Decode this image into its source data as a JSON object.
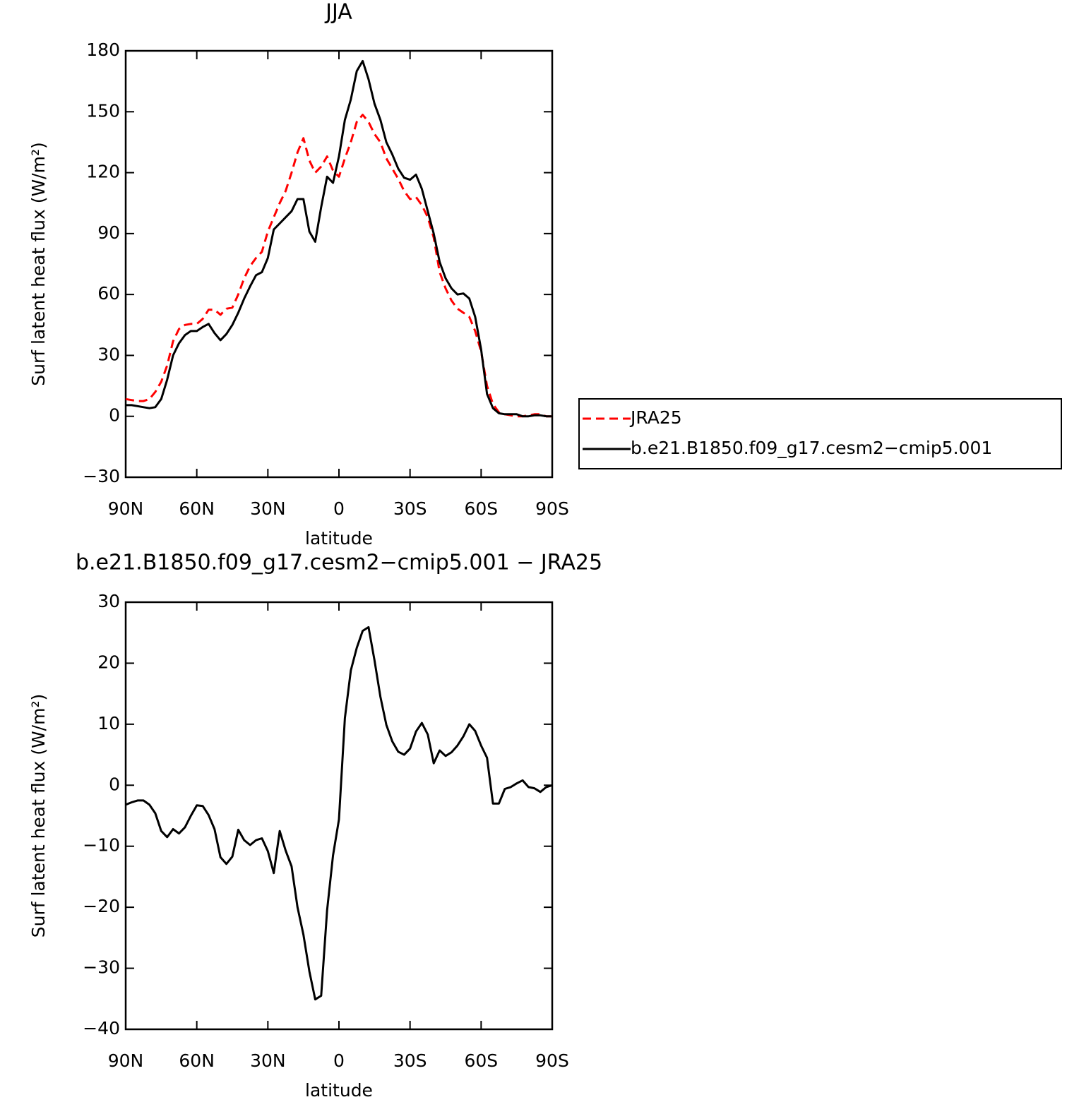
{
  "chart_data": [
    {
      "type": "line",
      "title": "JJA",
      "xlabel": "latitude",
      "ylabel": "Surf latent heat flux (W/m²)",
      "x": [
        90,
        87.5,
        85,
        82.5,
        80,
        77.5,
        75,
        72.5,
        70,
        67.5,
        65,
        62.5,
        60,
        57.5,
        55,
        52.5,
        50,
        47.5,
        45,
        42.5,
        40,
        37.5,
        35,
        32.5,
        30,
        27.5,
        25,
        22.5,
        20,
        17.5,
        15,
        12.5,
        10,
        7.5,
        5,
        2.5,
        0,
        -2.5,
        -5,
        -7.5,
        -10,
        -12.5,
        -15,
        -17.5,
        -20,
        -22.5,
        -25,
        -27.5,
        -30,
        -32.5,
        -35,
        -37.5,
        -40,
        -42.5,
        -45,
        -47.5,
        -50,
        -52.5,
        -55,
        -57.5,
        -60,
        -62.5,
        -65,
        -67.5,
        -70,
        -72.5,
        -75,
        -77.5,
        -80,
        -82.5,
        -85,
        -87.5,
        -90
      ],
      "series": [
        {
          "name": "JRA25",
          "color": "#ff0000",
          "style": "dashed",
          "values": [
            8.5,
            8,
            7.5,
            7.5,
            8.5,
            12,
            17,
            25,
            37,
            43,
            45,
            45.5,
            45.5,
            48,
            52.5,
            52.5,
            50,
            53,
            53.5,
            60,
            68,
            74,
            78,
            81,
            91,
            98,
            105,
            111,
            120,
            130,
            137,
            126,
            120,
            123,
            128,
            121,
            118,
            127,
            135,
            145,
            148.5,
            145,
            139,
            135,
            127,
            122,
            117,
            111,
            107,
            108,
            104,
            98,
            88,
            71,
            63,
            57,
            53,
            51,
            49,
            42,
            32,
            15,
            6,
            2,
            1,
            0.5,
            0,
            0,
            0.5,
            1,
            1,
            0,
            0
          ]
        },
        {
          "name": "b.e21.B1850.f09_g17.cesm2−cmip5.001",
          "color": "#000000",
          "style": "solid",
          "values": [
            5.5,
            5.5,
            5,
            4.5,
            4,
            4.5,
            8.5,
            18,
            30,
            36,
            40,
            42,
            42,
            44,
            45.5,
            41,
            37.5,
            40.5,
            45,
            51,
            58,
            64,
            69.5,
            71,
            78,
            92,
            95,
            98,
            101,
            107,
            107,
            91,
            86,
            103,
            118,
            115,
            128,
            146,
            156,
            170,
            175,
            166,
            154,
            146,
            135,
            129,
            122,
            117.5,
            116.5,
            119,
            112,
            101,
            90,
            76,
            68,
            63,
            60,
            60.5,
            58,
            49,
            33,
            11,
            4,
            1.5,
            1,
            1,
            1,
            0,
            0,
            0.5,
            0.5,
            0,
            0
          ]
        }
      ],
      "xlim": [
        90,
        -90
      ],
      "xticks": [
        {
          "value": 90,
          "label": "90N"
        },
        {
          "value": 60,
          "label": "60N"
        },
        {
          "value": 30,
          "label": "30N"
        },
        0,
        {
          "value": -30,
          "label": "30S"
        },
        {
          "value": -60,
          "label": "60S"
        },
        {
          "value": -90,
          "label": "90S"
        }
      ],
      "ylim": [
        -30,
        180
      ],
      "yticks": [
        {
          "value": -30,
          "label": "−30"
        },
        0,
        30,
        60,
        90,
        120,
        150,
        180
      ],
      "legend": "right"
    },
    {
      "type": "line",
      "title": "b.e21.B1850.f09_g17.cesm2−cmip5.001 − JRA25",
      "xlabel": "latitude",
      "ylabel": "Surf latent heat flux (W/m²)",
      "x": [
        90,
        87.5,
        85,
        82.5,
        80,
        77.5,
        75,
        72.5,
        70,
        67.5,
        65,
        62.5,
        60,
        57.5,
        55,
        52.5,
        50,
        47.5,
        45,
        42.5,
        40,
        37.5,
        35,
        32.5,
        30,
        27.5,
        25,
        22.5,
        20,
        17.5,
        15,
        12.5,
        10,
        7.5,
        5,
        2.5,
        0,
        -2.5,
        -5,
        -7.5,
        -10,
        -12.5,
        -15,
        -17.5,
        -20,
        -22.5,
        -25,
        -27.5,
        -30,
        -32.5,
        -35,
        -37.5,
        -40,
        -42.5,
        -45,
        -47.5,
        -50,
        -52.5,
        -55,
        -57.5,
        -60,
        -62.5,
        -65,
        -67.5,
        -70,
        -72.5,
        -75,
        -77.5,
        -80,
        -82.5,
        -85,
        -87.5,
        -90
      ],
      "color": "#000000",
      "values": [
        -3.2,
        -2.8,
        -2.5,
        -2.5,
        -3.2,
        -4.6,
        -7.5,
        -8.5,
        -7.2,
        -7.9,
        -6.9,
        -5,
        -3.3,
        -3.4,
        -4.9,
        -7.2,
        -11.8,
        -12.9,
        -11.7,
        -7.3,
        -9,
        -9.8,
        -9,
        -8.7,
        -10.8,
        -14.4,
        -7.5,
        -10.7,
        -13.3,
        -20,
        -24.5,
        -30.5,
        -35.1,
        -34.5,
        -20.5,
        -11.5,
        -5.6,
        11,
        18.8,
        22.5,
        25.3,
        25.9,
        20.5,
        14.5,
        9.9,
        7.2,
        5.5,
        5,
        6,
        8.8,
        10.2,
        8.3,
        3.6,
        5.7,
        4.8,
        5.4,
        6.5,
        8,
        10,
        8.9,
        6.5,
        4.5,
        -3,
        -3,
        -0.6,
        -0.3,
        0.3,
        0.8,
        -0.3,
        -0.5,
        -1.1,
        -0.3,
        0
      ],
      "xlim": [
        90,
        -90
      ],
      "xticks": [
        {
          "value": 90,
          "label": "90N"
        },
        {
          "value": 60,
          "label": "60N"
        },
        {
          "value": 30,
          "label": "30N"
        },
        0,
        {
          "value": -30,
          "label": "30S"
        },
        {
          "value": -60,
          "label": "60S"
        },
        {
          "value": -90,
          "label": "90S"
        }
      ],
      "ylim": [
        -40,
        30
      ],
      "yticks": [
        {
          "value": -40,
          "label": "−40"
        },
        {
          "value": -30,
          "label": "−30"
        },
        {
          "value": -20,
          "label": "−20"
        },
        {
          "value": -10,
          "label": "−10"
        },
        0,
        10,
        20,
        30
      ]
    }
  ]
}
